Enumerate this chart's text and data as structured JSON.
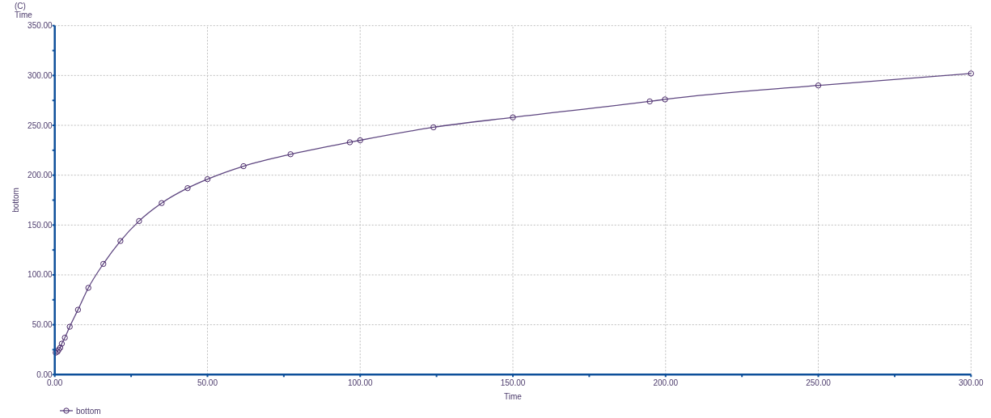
{
  "chart_data": {
    "type": "line",
    "title": "(C)",
    "subtitle": "Time",
    "xlabel": "Time",
    "ylabel": "bottom",
    "xlim": [
      0,
      300
    ],
    "ylim": [
      0,
      350
    ],
    "xticks": [
      {
        "value": 0,
        "label": "0.00"
      },
      {
        "value": 25,
        "label": null
      },
      {
        "value": 50,
        "label": "50.00"
      },
      {
        "value": 75,
        "label": null
      },
      {
        "value": 100,
        "label": "100.00"
      },
      {
        "value": 125,
        "label": null
      },
      {
        "value": 150,
        "label": "150.00"
      },
      {
        "value": 175,
        "label": null
      },
      {
        "value": 200,
        "label": "200.00"
      },
      {
        "value": 225,
        "label": null
      },
      {
        "value": 250,
        "label": "250.00"
      },
      {
        "value": 275,
        "label": null
      },
      {
        "value": 300,
        "label": "300.00"
      }
    ],
    "yticks": [
      {
        "value": 0,
        "label": "0.00"
      },
      {
        "value": 25,
        "label": null
      },
      {
        "value": 50,
        "label": "50.00"
      },
      {
        "value": 75,
        "label": null
      },
      {
        "value": 100,
        "label": "100.00"
      },
      {
        "value": 125,
        "label": null
      },
      {
        "value": 150,
        "label": "150.00"
      },
      {
        "value": 175,
        "label": null
      },
      {
        "value": 200,
        "label": "200.00"
      },
      {
        "value": 225,
        "label": null
      },
      {
        "value": 250,
        "label": "250.00"
      },
      {
        "value": 275,
        "label": null
      },
      {
        "value": 300,
        "label": "300.00"
      },
      {
        "value": 325,
        "label": null
      },
      {
        "value": 350,
        "label": "350.00"
      }
    ],
    "x": [
      0.3,
      0.9,
      1.3,
      1.8,
      2.3,
      3.3,
      4.9,
      7.6,
      11,
      15.9,
      21.5,
      27.6,
      35,
      43.5,
      50,
      61.8,
      77.2,
      96.6,
      100,
      124,
      150,
      194.8,
      199.8,
      250,
      300
    ],
    "series": [
      {
        "name": "bottom",
        "color": "#5e4680",
        "values": [
          22,
          23,
          25,
          27,
          31,
          37,
          48,
          65,
          87,
          111,
          134,
          154,
          172,
          187,
          196,
          209,
          221,
          233,
          235,
          248,
          258,
          274,
          276,
          290,
          302
        ]
      }
    ],
    "grid": true,
    "legend": "bottom left",
    "marker": "circle",
    "line_style": "solid"
  }
}
